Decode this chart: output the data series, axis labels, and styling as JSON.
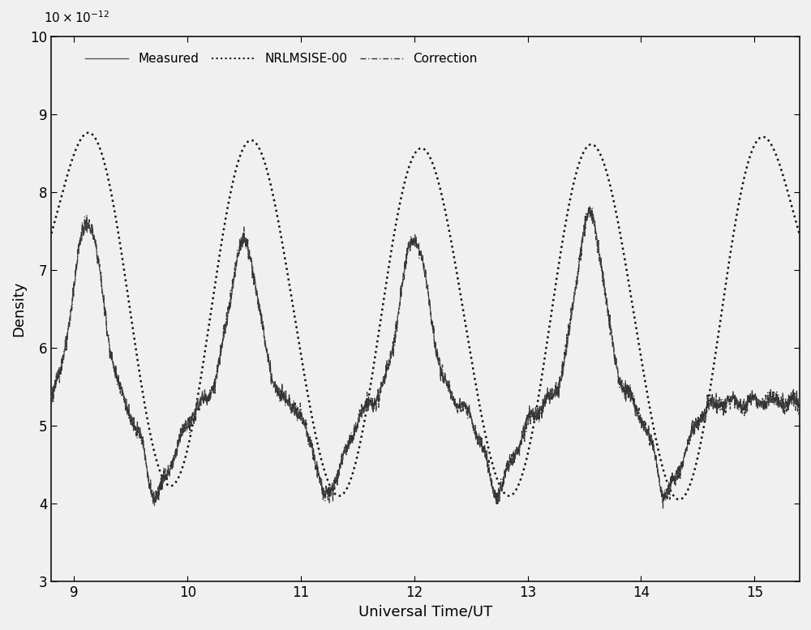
{
  "xlabel": "Universal Time/UT",
  "ylabel": "Density",
  "xlim": [
    8.8,
    15.4
  ],
  "ylim": [
    3e-12,
    1e-11
  ],
  "yticks": [
    3e-12,
    4e-12,
    5e-12,
    6e-12,
    7e-12,
    8e-12,
    9e-12,
    1e-11
  ],
  "ytick_labels": [
    "3",
    "4",
    "5",
    "6",
    "7",
    "8",
    "9",
    "10"
  ],
  "xticks": [
    9,
    10,
    11,
    12,
    13,
    14,
    15
  ],
  "legend_labels": [
    "Measured",
    "NRLMSISE-00",
    "Correction"
  ],
  "bg_color": "#f0f0f0",
  "figsize": [
    10.0,
    7.77
  ],
  "dpi": 100,
  "nrl_peaks": [
    [
      9.15,
      8.85e-12
    ],
    [
      10.55,
      8.8e-12
    ],
    [
      12.05,
      8.7e-12
    ],
    [
      13.55,
      8.75e-12
    ],
    [
      15.05,
      8.8e-12
    ]
  ],
  "nrl_troughs": [
    [
      9.85,
      4e-12
    ],
    [
      11.35,
      3.95e-12
    ],
    [
      12.85,
      3.95e-12
    ],
    [
      14.35,
      3.9e-12
    ]
  ],
  "nrl_sigma": 0.28,
  "nrl_baseline": 6.3e-12,
  "meas_peaks": [
    [
      9.12,
      7.6e-12
    ],
    [
      10.5,
      7.35e-12
    ],
    [
      12.0,
      7.4e-12
    ],
    [
      13.55,
      7.7e-12
    ]
  ],
  "meas_troughs": [
    [
      9.78,
      4.4e-12
    ],
    [
      11.28,
      4.4e-12
    ],
    [
      12.78,
      4.4e-12
    ],
    [
      14.28,
      4.4e-12
    ]
  ],
  "meas_sub_peaks": [
    [
      9.55,
      5.2e-12
    ],
    [
      9.7,
      4.85e-12
    ],
    [
      11.05,
      5.15e-12
    ],
    [
      11.2,
      4.9e-12
    ],
    [
      12.55,
      5.15e-12
    ],
    [
      12.7,
      4.9e-12
    ],
    [
      14.05,
      5.15e-12
    ],
    [
      14.2,
      4.9e-12
    ]
  ],
  "meas_baseline": 5.3e-12,
  "meas_sigma_peak": 0.13,
  "meas_sigma_trough": 0.14,
  "meas_sigma_sub": 0.055
}
